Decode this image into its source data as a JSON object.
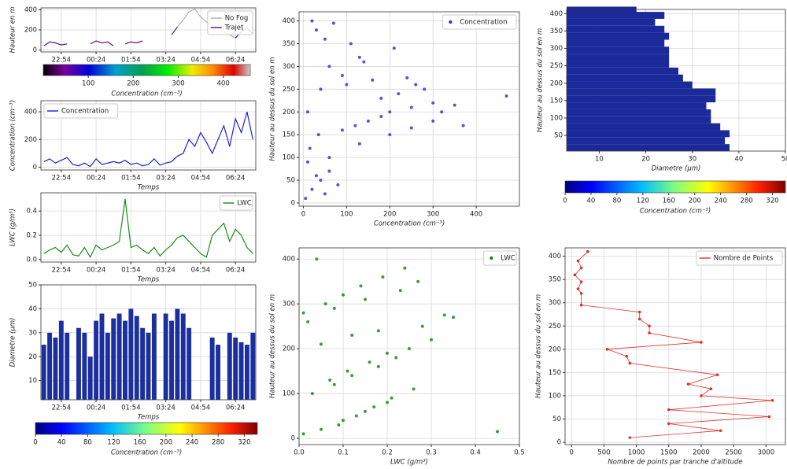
{
  "chart_data": [
    {
      "type": "line",
      "ylabel": "Hauteur en m",
      "ylabel_color": "#222",
      "x": [
        "22:09",
        "22:24",
        "22:39",
        "22:54",
        "23:09",
        "23:24",
        "23:39",
        "23:54",
        "00:09",
        "00:24",
        "00:39",
        "00:54",
        "01:09",
        "01:24",
        "01:39",
        "01:54",
        "02:09",
        "02:24",
        "02:39",
        "02:54",
        "03:09",
        "03:24",
        "03:39",
        "03:54",
        "04:09",
        "04:24",
        "04:39",
        "04:54",
        "05:09",
        "05:24",
        "05:39",
        "05:54",
        "06:09",
        "06:24",
        "06:39",
        "06:54",
        "07:09"
      ],
      "xticks": [
        "22:54",
        "00:24",
        "01:54",
        "03:24",
        "04:54",
        "06:24"
      ],
      "ylim": [
        -20,
        420
      ],
      "yticks": [
        0,
        200,
        400
      ],
      "grid": true,
      "legend": "upper right",
      "series": [
        {
          "name": "No Fog",
          "color": "#b0b0b0",
          "values": [
            null,
            null,
            null,
            null,
            null,
            null,
            null,
            null,
            null,
            null,
            null,
            null,
            null,
            null,
            null,
            null,
            null,
            null,
            null,
            null,
            null,
            null,
            null,
            230,
            300,
            380,
            410,
            330,
            280,
            250,
            220,
            180,
            150,
            120,
            null,
            null,
            null
          ]
        },
        {
          "name": "Trajet",
          "color": "#5a1580",
          "values": [
            40,
            80,
            70,
            50,
            60,
            null,
            null,
            null,
            60,
            90,
            70,
            80,
            40,
            null,
            60,
            80,
            70,
            90,
            null,
            null,
            null,
            null,
            150,
            230,
            null,
            null,
            null,
            null,
            null,
            null,
            null,
            null,
            null,
            120,
            180,
            220,
            160
          ]
        }
      ],
      "colormap": "spectral",
      "colorbar": {
        "label": "Concentration  (cm⁻³)",
        "lim": [
          0,
          460
        ],
        "ticks": [
          100,
          200,
          300,
          400
        ]
      }
    },
    {
      "type": "line",
      "xlabel": "Temps",
      "ylabel": "Concentration  (cm⁻³)",
      "ylabel_color": "#2020c0",
      "x": [
        "22:09",
        "22:24",
        "22:39",
        "22:54",
        "23:09",
        "23:24",
        "23:39",
        "23:54",
        "00:09",
        "00:24",
        "00:39",
        "00:54",
        "01:09",
        "01:24",
        "01:39",
        "01:54",
        "02:09",
        "02:24",
        "02:39",
        "02:54",
        "03:09",
        "03:24",
        "03:39",
        "03:54",
        "04:09",
        "04:24",
        "04:39",
        "04:54",
        "05:09",
        "05:24",
        "05:39",
        "05:54",
        "06:09",
        "06:24",
        "06:39",
        "06:54",
        "07:09"
      ],
      "xticks": [
        "22:54",
        "00:24",
        "01:54",
        "03:24",
        "04:54",
        "06:24"
      ],
      "ylim": [
        -20,
        480
      ],
      "yticks": [
        0,
        200,
        400
      ],
      "grid": true,
      "legend": "upper left",
      "series": [
        {
          "name": "Concentration",
          "color": "#2020d0",
          "values": [
            40,
            60,
            30,
            50,
            70,
            20,
            10,
            30,
            5,
            60,
            20,
            30,
            40,
            30,
            50,
            20,
            30,
            10,
            20,
            60,
            15,
            30,
            40,
            80,
            100,
            200,
            150,
            250,
            180,
            100,
            200,
            300,
            150,
            350,
            250,
            400,
            200
          ]
        }
      ]
    },
    {
      "type": "line",
      "xlabel": "Temps",
      "ylabel": "LWC (g/m³)",
      "ylabel_color": "#1a8a1a",
      "x": [
        "22:09",
        "22:24",
        "22:39",
        "22:54",
        "23:09",
        "23:24",
        "23:39",
        "23:54",
        "00:09",
        "00:24",
        "00:39",
        "00:54",
        "01:09",
        "01:24",
        "01:39",
        "01:54",
        "02:09",
        "02:24",
        "02:39",
        "02:54",
        "03:09",
        "03:24",
        "03:39",
        "03:54",
        "04:09",
        "04:24",
        "04:39",
        "04:54",
        "05:09",
        "05:24",
        "05:39",
        "05:54",
        "06:09",
        "06:24",
        "06:39",
        "06:54",
        "07:09"
      ],
      "xticks": [
        "22:54",
        "00:24",
        "01:54",
        "03:24",
        "04:54",
        "06:24"
      ],
      "ylim": [
        -0.02,
        0.55
      ],
      "yticks": [
        {
          "value": 0,
          "label": "0.0"
        },
        0.2,
        0.4
      ],
      "grid": true,
      "legend": "upper right",
      "series": [
        {
          "name": "LWC",
          "color": "#1a8a1a",
          "values": [
            0.05,
            0.08,
            0.1,
            0.06,
            0.12,
            0.04,
            0.03,
            0.1,
            0.02,
            0.12,
            0.08,
            0.1,
            0.12,
            0.15,
            0.5,
            0.1,
            0.12,
            0.08,
            0.05,
            0.1,
            0.03,
            0.08,
            0.12,
            0.18,
            0.2,
            0.15,
            0.1,
            0.05,
            0.02,
            0.2,
            0.25,
            0.3,
            0.15,
            0.25,
            0.2,
            0.1,
            0.05
          ]
        }
      ]
    },
    {
      "type": "bar",
      "xlabel": "Temps",
      "ylabel": "Diametre  (µm)",
      "ylabel_color": "#222",
      "x": [
        "22:09",
        "22:24",
        "22:39",
        "22:54",
        "23:09",
        "23:24",
        "23:39",
        "23:54",
        "00:09",
        "00:24",
        "00:39",
        "00:54",
        "01:09",
        "01:24",
        "01:39",
        "01:54",
        "02:09",
        "02:24",
        "02:39",
        "02:54",
        "03:09",
        "03:24",
        "03:39",
        "03:54",
        "04:09",
        "04:24",
        "04:39",
        "04:54",
        "05:09",
        "05:24",
        "05:39",
        "05:54",
        "06:09",
        "06:24",
        "06:39",
        "06:54",
        "07:09"
      ],
      "xticks": [
        "22:54",
        "00:24",
        "01:54",
        "03:24",
        "04:54",
        "06:24"
      ],
      "ylim": [
        2,
        50
      ],
      "yticks": [
        10,
        20,
        30,
        40,
        50
      ],
      "grid": true,
      "series": [
        {
          "color": "#1b2f9e",
          "values": [
            25,
            30,
            28,
            35,
            30,
            null,
            32,
            30,
            20,
            35,
            38,
            30,
            36,
            38,
            35,
            40,
            37,
            32,
            30,
            38,
            null,
            38,
            35,
            40,
            38,
            32,
            null,
            null,
            null,
            28,
            25,
            null,
            30,
            28,
            26,
            25,
            30
          ]
        }
      ],
      "colormap": "jet",
      "colorbar": {
        "label": "Concentration  (cm⁻³)",
        "lim": [
          0,
          340
        ],
        "ticks": [
          0,
          40,
          80,
          120,
          160,
          200,
          240,
          280,
          320
        ]
      }
    },
    {
      "type": "scatter",
      "xlabel": "Concentration  (cm⁻³)",
      "ylabel": "Hauteur au dessus du sol en m",
      "ylabel_color": "#2020c0",
      "xlim": [
        -10,
        500
      ],
      "xticks": [
        0,
        100,
        200,
        300,
        400
      ],
      "ylim": [
        -7,
        420
      ],
      "yticks": [
        0,
        50,
        100,
        150,
        200,
        250,
        300,
        350,
        400
      ],
      "grid": true,
      "legend": "upper right",
      "series": [
        {
          "name": "Concentration",
          "color": "#3535e0",
          "x": [
            5,
            20,
            40,
            60,
            10,
            30,
            80,
            50,
            15,
            35,
            90,
            120,
            150,
            200,
            250,
            300,
            180,
            220,
            280,
            350,
            100,
            160,
            240,
            320,
            370,
            60,
            130,
            210,
            260,
            470,
            30,
            70,
            110,
            140,
            50,
            90,
            20,
            40,
            10,
            60,
            200,
            300,
            180,
            250,
            130
          ],
          "values": [
            10,
            30,
            50,
            70,
            90,
            60,
            40,
            20,
            120,
            150,
            160,
            170,
            180,
            200,
            210,
            220,
            230,
            240,
            250,
            215,
            260,
            270,
            275,
            200,
            170,
            300,
            320,
            340,
            260,
            235,
            380,
            395,
            350,
            310,
            360,
            280,
            400,
            250,
            200,
            100,
            150,
            180,
            190,
            165,
            130
          ]
        }
      ]
    },
    {
      "type": "scatter",
      "xlabel": "LWC (g/m³)",
      "xlabel_color": "#1a8a1a",
      "ylabel": "Hauteur au dessus du sol en m",
      "ylabel_color": "#1a8a1a",
      "xlim": [
        0,
        0.5
      ],
      "xticks": [
        {
          "value": 0,
          "label": "0.0"
        },
        0.1,
        0.2,
        0.3,
        0.4,
        0.5
      ],
      "ylim": [
        -14,
        425
      ],
      "yticks": [
        0,
        100,
        200,
        300,
        400
      ],
      "grid": true,
      "legend": "upper right",
      "series": [
        {
          "name": "LWC",
          "color": "#1a8a1a",
          "x": [
            0.01,
            0.05,
            0.1,
            0.15,
            0.2,
            0.03,
            0.08,
            0.12,
            0.18,
            0.22,
            0.25,
            0.3,
            0.35,
            0.45,
            0.02,
            0.06,
            0.1,
            0.14,
            0.19,
            0.24,
            0.28,
            0.33,
            0.04,
            0.09,
            0.13,
            0.17,
            0.21,
            0.26,
            0.07,
            0.11,
            0.16,
            0.2,
            0.05,
            0.12,
            0.18,
            0.01,
            0.08,
            0.15,
            0.23,
            0.27
          ],
          "values": [
            10,
            20,
            40,
            60,
            80,
            100,
            120,
            140,
            160,
            180,
            200,
            220,
            270,
            15,
            260,
            300,
            320,
            340,
            360,
            380,
            250,
            275,
            400,
            30,
            50,
            70,
            90,
            110,
            130,
            150,
            170,
            190,
            210,
            230,
            240,
            280,
            290,
            310,
            330,
            350
          ]
        }
      ]
    },
    {
      "type": "barh",
      "xlabel": "Diametre  (µm)",
      "ylabel": "Hauteur au dessus du sol en m",
      "ylabel_color": "#222",
      "xlim": [
        3,
        50
      ],
      "xticks": [
        10,
        20,
        30,
        40,
        50
      ],
      "ylim": [
        5,
        412
      ],
      "yticks": [
        50,
        100,
        150,
        200,
        250,
        300,
        350,
        400
      ],
      "grid": true,
      "series": [
        {
          "color": "#1b2a9a",
          "y": [
            15,
            35,
            55,
            75,
            95,
            115,
            135,
            155,
            175,
            195,
            215,
            235,
            255,
            275,
            295,
            315,
            335,
            355,
            375,
            395,
            410
          ],
          "values": [
            38,
            37,
            38,
            36,
            34,
            34,
            33,
            35,
            35,
            30,
            28,
            27,
            25,
            25,
            25,
            24,
            25,
            24,
            22,
            24,
            18
          ]
        }
      ],
      "colormap": "jet",
      "colorbar": {
        "label": "Concentration  (cm⁻³)",
        "lim": [
          0,
          340
        ],
        "ticks": [
          0,
          40,
          80,
          120,
          160,
          200,
          240,
          280,
          320
        ]
      }
    },
    {
      "type": "line",
      "xlabel": "Nombre de points par tranche d'altitude",
      "xlabel_color": "#1a8a1a",
      "ylabel": "Hauteur au dessus du sol en m",
      "ylabel_color": "#1a8a1a",
      "xlim": [
        -100,
        3300
      ],
      "xticks": [
        0,
        500,
        1000,
        1500,
        2000,
        2500,
        3000
      ],
      "ylim": [
        -5,
        418
      ],
      "yticks": [
        0,
        50,
        100,
        150,
        200,
        250,
        300,
        350,
        400
      ],
      "grid": true,
      "legend": "upper right",
      "series": [
        {
          "name": "Nombre de Points",
          "color": "#e03030",
          "x": [
            900,
            2300,
            1500,
            3050,
            1500,
            3100,
            2000,
            2150,
            1800,
            2250,
            900,
            850,
            550,
            2000,
            1200,
            1200,
            1050,
            1050,
            150,
            150,
            100,
            150,
            50,
            150,
            100,
            250
          ],
          "values": [
            10,
            25,
            40,
            55,
            70,
            90,
            100,
            115,
            125,
            145,
            170,
            185,
            200,
            215,
            235,
            250,
            265,
            280,
            295,
            320,
            330,
            345,
            360,
            375,
            390,
            410
          ]
        }
      ]
    }
  ]
}
